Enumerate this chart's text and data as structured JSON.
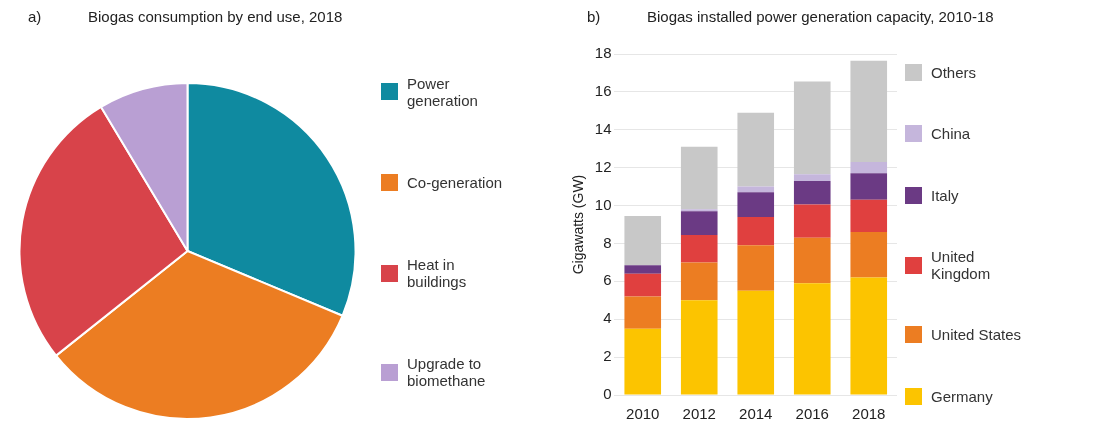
{
  "chart_data": [
    {
      "type": "pie",
      "title": "Biogas consumption by end use, 2018",
      "annotations": [
        "a)"
      ],
      "legend": "right",
      "categories": [
        "Power generation",
        "Co-generation",
        "Heat in buildings",
        "Upgrade to biomethane"
      ],
      "values": [
        31.3,
        33,
        27.1,
        8.6
      ],
      "colors": [
        "#0f8aa0",
        "#ec7d22",
        "#d8434a",
        "#b99fd3"
      ]
    },
    {
      "type": "bar",
      "title": "Biogas installed power generation capacity, 2010-18",
      "annotations": [
        "b)"
      ],
      "ylabel": "Gigawatts (GW)",
      "stacked": true,
      "legend": "right",
      "grid": "y",
      "categories": [
        "2010",
        "2012",
        "2014",
        "2016",
        "2018"
      ],
      "ylim": [
        0,
        18
      ],
      "yticks": [
        0,
        2,
        4,
        6,
        8,
        10,
        12,
        14,
        16,
        18
      ],
      "series": [
        {
          "name": "Germany",
          "color": "#fcc400",
          "values": [
            3.5,
            5.0,
            5.5,
            5.9,
            6.2
          ]
        },
        {
          "name": "United States",
          "color": "#ec7d22",
          "values": [
            1.7,
            2.0,
            2.4,
            2.4,
            2.4
          ]
        },
        {
          "name": "United Kingdom",
          "color": "#e0403f",
          "values": [
            1.2,
            1.45,
            1.5,
            1.75,
            1.7
          ]
        },
        {
          "name": "Italy",
          "color": "#6b3a84",
          "values": [
            0.45,
            1.25,
            1.3,
            1.25,
            1.4
          ]
        },
        {
          "name": "China",
          "color": "#c5b6dc",
          "values": [
            0,
            0.1,
            0.3,
            0.35,
            0.6
          ]
        },
        {
          "name": "Others",
          "color": "#c8c8c8",
          "values": [
            2.6,
            3.3,
            3.9,
            4.9,
            5.35
          ]
        }
      ]
    }
  ]
}
